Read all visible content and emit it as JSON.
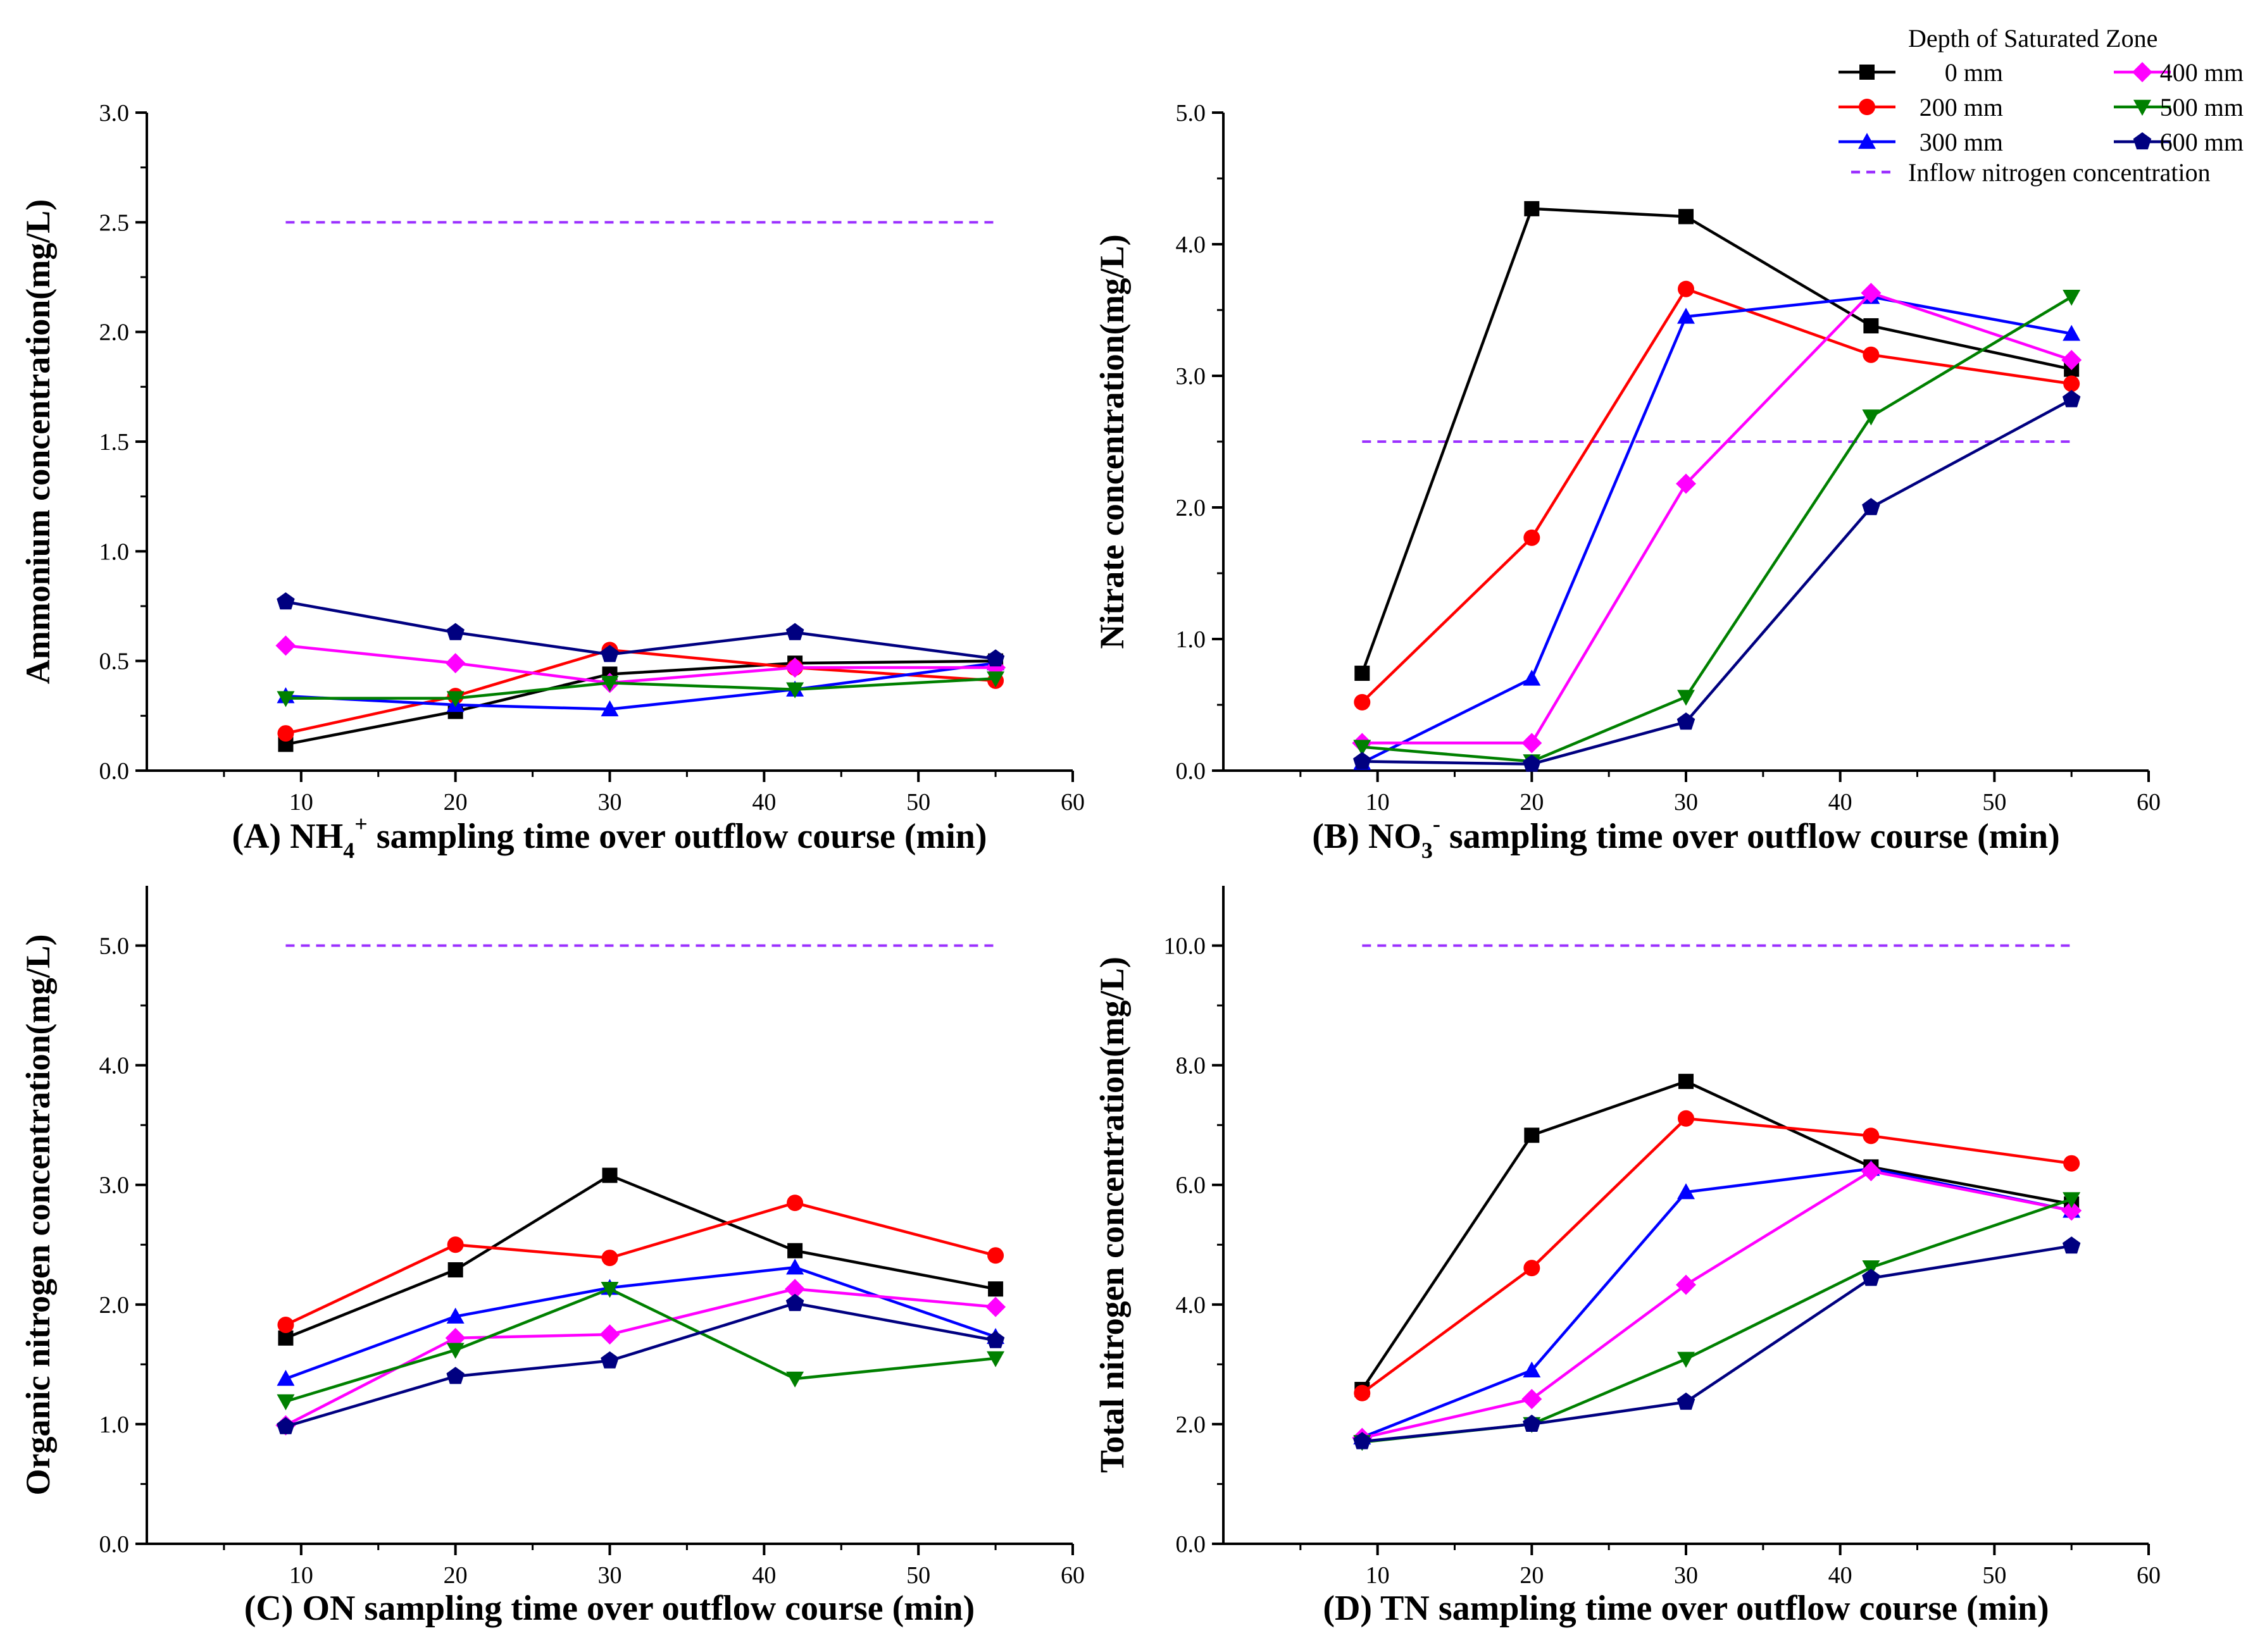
{
  "legend": {
    "title": "Depth of  Saturated Zone",
    "inflow_label": "Inflow nitrogen concentration",
    "inflow_color": "#9B30FF",
    "series": [
      {
        "name": "0 mm",
        "color": "#000000",
        "marker": "square"
      },
      {
        "name": "200 mm",
        "color": "#FF0000",
        "marker": "circle"
      },
      {
        "name": "300 mm",
        "color": "#0000FF",
        "marker": "triangle-up"
      },
      {
        "name": "400 mm",
        "color": "#FF00FF",
        "marker": "diamond"
      },
      {
        "name": "500 mm",
        "color": "#008000",
        "marker": "triangle-down"
      },
      {
        "name": "600 mm",
        "color": "#000080",
        "marker": "pentagon"
      }
    ]
  },
  "chart_data": [
    {
      "id": "A",
      "type": "line",
      "caption_prefix": "(A) NH",
      "caption_sub": "4",
      "caption_sup": "+",
      "caption_suffix": " sampling time over outflow course (min)",
      "ylabel": "Ammonium concentration(mg/L)",
      "xlim": [
        0,
        60
      ],
      "ylim": [
        0,
        3.0
      ],
      "xticks": [
        10,
        20,
        30,
        40,
        50,
        60
      ],
      "yticks": [
        "0.0",
        "0.5",
        "1.0",
        "1.5",
        "2.0",
        "2.5",
        "3.0"
      ],
      "x": [
        9,
        20,
        30,
        42,
        55
      ],
      "inflow": 2.5,
      "series": [
        {
          "name": "0 mm",
          "values": [
            0.12,
            0.27,
            0.44,
            0.49,
            0.5
          ]
        },
        {
          "name": "200 mm",
          "values": [
            0.17,
            0.34,
            0.55,
            0.47,
            0.41
          ]
        },
        {
          "name": "300 mm",
          "values": [
            0.34,
            0.3,
            0.28,
            0.37,
            0.49
          ]
        },
        {
          "name": "400 mm",
          "values": [
            0.57,
            0.49,
            0.4,
            0.47,
            0.47
          ]
        },
        {
          "name": "500 mm",
          "values": [
            0.33,
            0.33,
            0.4,
            0.37,
            0.42
          ]
        },
        {
          "name": "600 mm",
          "values": [
            0.77,
            0.63,
            0.53,
            0.63,
            0.51
          ]
        }
      ]
    },
    {
      "id": "B",
      "type": "line",
      "caption_prefix": "(B) NO",
      "caption_sub": "3",
      "caption_sup": "-",
      "caption_suffix": " sampling time over outflow course (min)",
      "ylabel": "Nitrate concentration(mg/L)",
      "xlim": [
        0,
        60
      ],
      "ylim": [
        0,
        5.0
      ],
      "xticks": [
        10,
        20,
        30,
        40,
        50,
        60
      ],
      "yticks": [
        "0.0",
        "1.0",
        "2.0",
        "3.0",
        "4.0",
        "5.0"
      ],
      "x": [
        9,
        20,
        30,
        42,
        55
      ],
      "inflow": 2.5,
      "series": [
        {
          "name": "0 mm",
          "values": [
            0.74,
            4.27,
            4.21,
            3.38,
            3.05
          ]
        },
        {
          "name": "200 mm",
          "values": [
            0.52,
            1.77,
            3.66,
            3.16,
            2.94
          ]
        },
        {
          "name": "300 mm",
          "values": [
            0.06,
            0.7,
            3.45,
            3.6,
            3.32
          ]
        },
        {
          "name": "400 mm",
          "values": [
            0.21,
            0.21,
            2.18,
            3.63,
            3.12
          ]
        },
        {
          "name": "500 mm",
          "values": [
            0.18,
            0.07,
            0.56,
            2.69,
            3.6
          ]
        },
        {
          "name": "600 mm",
          "values": [
            0.07,
            0.05,
            0.37,
            2.0,
            2.82
          ]
        }
      ]
    },
    {
      "id": "C",
      "type": "line",
      "caption_prefix": "(C) ON sampling time over outflow course (min)",
      "caption_sub": "",
      "caption_sup": "",
      "caption_suffix": "",
      "ylabel": "Organic nitrogen concentration(mg/L)",
      "xlim": [
        0,
        60
      ],
      "ylim": [
        0,
        5.5
      ],
      "xticks": [
        10,
        20,
        30,
        40,
        50,
        60
      ],
      "yticks": [
        "0.0",
        "1.0",
        "2.0",
        "3.0",
        "4.0",
        "5.0"
      ],
      "x": [
        9,
        20,
        30,
        42,
        55
      ],
      "inflow": 5.0,
      "series": [
        {
          "name": "0 mm",
          "values": [
            1.72,
            2.29,
            3.08,
            2.45,
            2.13
          ]
        },
        {
          "name": "200 mm",
          "values": [
            1.83,
            2.5,
            2.39,
            2.85,
            2.41
          ]
        },
        {
          "name": "300 mm",
          "values": [
            1.38,
            1.9,
            2.14,
            2.31,
            1.73
          ]
        },
        {
          "name": "400 mm",
          "values": [
            0.99,
            1.72,
            1.75,
            2.13,
            1.98
          ]
        },
        {
          "name": "500 mm",
          "values": [
            1.19,
            1.62,
            2.13,
            1.38,
            1.55
          ]
        },
        {
          "name": "600 mm",
          "values": [
            0.98,
            1.4,
            1.53,
            2.01,
            1.7
          ]
        }
      ]
    },
    {
      "id": "D",
      "type": "line",
      "caption_prefix": "(D) TN sampling time over outflow course (min)",
      "caption_sub": "",
      "caption_sup": "",
      "caption_suffix": "",
      "ylabel": "Total nitrogen concentration(mg/L)",
      "xlim": [
        0,
        60
      ],
      "ylim": [
        0,
        11.0
      ],
      "xticks": [
        10,
        20,
        30,
        40,
        50,
        60
      ],
      "yticks": [
        "0.0",
        "2.0",
        "4.0",
        "6.0",
        "8.0",
        "10.0"
      ],
      "x": [
        9,
        20,
        30,
        42,
        55
      ],
      "inflow": 10.0,
      "series": [
        {
          "name": "0 mm",
          "values": [
            2.58,
            6.83,
            7.73,
            6.3,
            5.68
          ]
        },
        {
          "name": "200 mm",
          "values": [
            2.52,
            4.61,
            7.11,
            6.82,
            6.36
          ]
        },
        {
          "name": "300 mm",
          "values": [
            1.78,
            2.9,
            5.88,
            6.27,
            5.57
          ]
        },
        {
          "name": "400 mm",
          "values": [
            1.77,
            2.42,
            4.33,
            6.23,
            5.57
          ]
        },
        {
          "name": "500 mm",
          "values": [
            1.7,
            2.0,
            3.09,
            4.62,
            5.76
          ]
        },
        {
          "name": "600 mm",
          "values": [
            1.71,
            2.0,
            2.37,
            4.44,
            4.98
          ]
        }
      ]
    }
  ]
}
